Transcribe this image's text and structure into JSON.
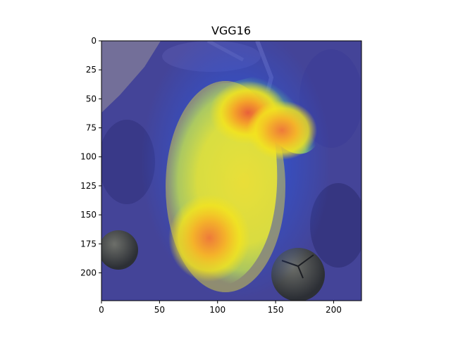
{
  "chart_data": {
    "type": "heatmap",
    "title": "VGG16",
    "xlabel": "",
    "ylabel": "",
    "xlim": [
      0,
      224
    ],
    "ylim": [
      224,
      0
    ],
    "xticks": [
      0,
      50,
      100,
      150,
      200
    ],
    "yticks": [
      0,
      25,
      50,
      75,
      100,
      125,
      150,
      175,
      200
    ],
    "grid": false,
    "legend": "none",
    "overlay": "Grad-CAM heatmap (jet colormap) over leaf photograph",
    "colormap": [
      "#2b2b8f",
      "#2f55d8",
      "#1fa6e0",
      "#4fd0a0",
      "#c8e63c",
      "#f3e31e",
      "#f4a12a",
      "#e8603a"
    ],
    "hotspots": [
      {
        "x": 130,
        "y": 65,
        "intensity": 0.95
      },
      {
        "x": 152,
        "y": 78,
        "intensity": 0.85
      },
      {
        "x": 92,
        "y": 172,
        "intensity": 0.8
      }
    ]
  }
}
